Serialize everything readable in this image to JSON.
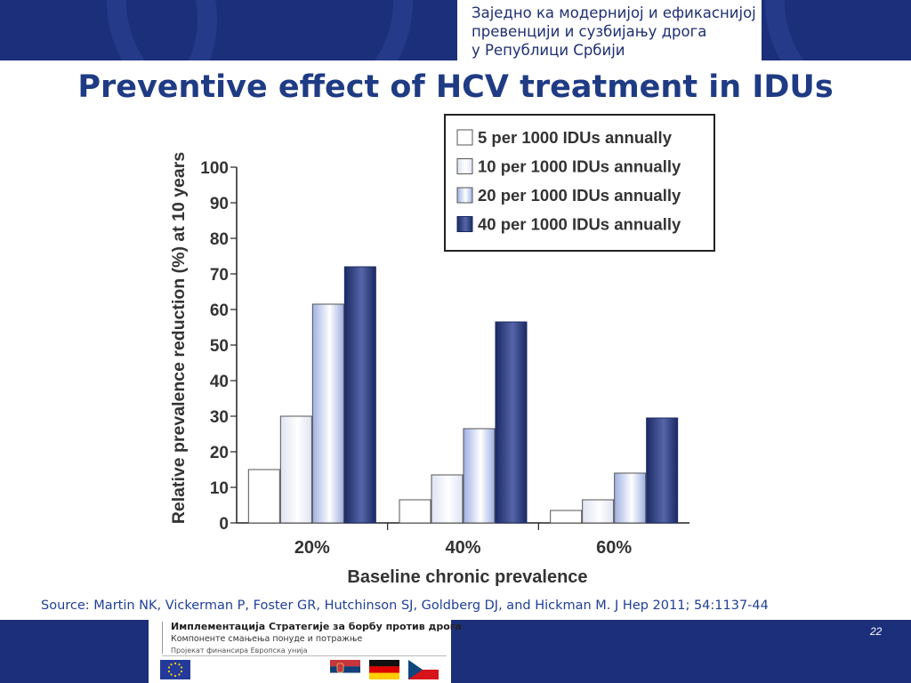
{
  "header": {
    "lines": [
      "Заједно ка модернијој и ефикаснијој",
      "превенцији и сузбијању дрога",
      "у Републици Србији"
    ]
  },
  "slide_title": "Preventive effect of HCV treatment in IDUs",
  "chart_data": {
    "type": "bar",
    "title": "",
    "xlabel": "Baseline chronic prevalence",
    "ylabel": "Relative prevalence reduction (%) at 10 years",
    "categories": [
      "20%",
      "40%",
      "60%"
    ],
    "ylim": [
      0,
      100
    ],
    "yticks": [
      0,
      10,
      20,
      30,
      40,
      50,
      60,
      70,
      80,
      90,
      100
    ],
    "grid": false,
    "legend_position": "top-right",
    "series": [
      {
        "name": "5 per 1000 IDUs annually",
        "values": [
          15,
          6.5,
          3.5
        ],
        "color": "#ffffff"
      },
      {
        "name": "10 per 1000 IDUs annually",
        "values": [
          30,
          13.5,
          6.5
        ],
        "color": "#dfe3f3"
      },
      {
        "name": "20 per 1000 IDUs annually",
        "values": [
          61.5,
          26.5,
          14
        ],
        "color": "#9fb0e2"
      },
      {
        "name": "40 per 1000 IDUs  annually",
        "values": [
          72,
          56.5,
          29.5
        ],
        "color": "#1b2a63"
      }
    ]
  },
  "source": "Source: Martin NK, Vickerman P, Foster GR, Hutchinson SJ, Goldberg DJ, and Hickman M. J Hep 2011; 54:1137-44",
  "footer": {
    "strategy": "Имплементација Стратегије за борбу против дрога",
    "components": "Компоненте смањења понуде и потражње",
    "eu_funding": "Пројекат финансира Европска унија",
    "flags": [
      "eu-flag",
      "serbia-flag",
      "germany-flag",
      "czech-flag"
    ]
  },
  "page_number": "22"
}
